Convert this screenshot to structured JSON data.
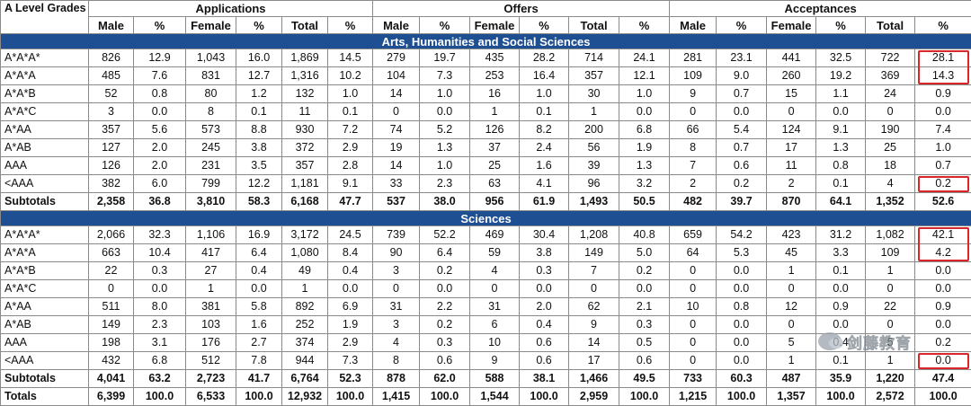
{
  "headers": {
    "grades": "A Level Grades",
    "groups": [
      "Applications",
      "Offers",
      "Acceptances"
    ],
    "columns": [
      "Male",
      "%",
      "Female",
      "%",
      "Total",
      "%"
    ]
  },
  "sections": [
    {
      "title": "Arts, Humanities and Social Sciences",
      "rows": [
        {
          "grade": "A*A*A*",
          "cells": [
            "826",
            "12.9",
            "1,043",
            "16.0",
            "1,869",
            "14.5",
            "279",
            "19.7",
            "435",
            "28.2",
            "714",
            "24.1",
            "281",
            "23.1",
            "441",
            "32.5",
            "722",
            "28.1"
          ]
        },
        {
          "grade": "A*A*A",
          "cells": [
            "485",
            "7.6",
            "831",
            "12.7",
            "1,316",
            "10.2",
            "104",
            "7.3",
            "253",
            "16.4",
            "357",
            "12.1",
            "109",
            "9.0",
            "260",
            "19.2",
            "369",
            "14.3"
          ]
        },
        {
          "grade": "A*A*B",
          "cells": [
            "52",
            "0.8",
            "80",
            "1.2",
            "132",
            "1.0",
            "14",
            "1.0",
            "16",
            "1.0",
            "30",
            "1.0",
            "9",
            "0.7",
            "15",
            "1.1",
            "24",
            "0.9"
          ]
        },
        {
          "grade": "A*A*C",
          "cells": [
            "3",
            "0.0",
            "8",
            "0.1",
            "11",
            "0.1",
            "0",
            "0.0",
            "1",
            "0.1",
            "1",
            "0.0",
            "0",
            "0.0",
            "0",
            "0.0",
            "0",
            "0.0"
          ]
        },
        {
          "grade": "A*AA",
          "cells": [
            "357",
            "5.6",
            "573",
            "8.8",
            "930",
            "7.2",
            "74",
            "5.2",
            "126",
            "8.2",
            "200",
            "6.8",
            "66",
            "5.4",
            "124",
            "9.1",
            "190",
            "7.4"
          ]
        },
        {
          "grade": "A*AB",
          "cells": [
            "127",
            "2.0",
            "245",
            "3.8",
            "372",
            "2.9",
            "19",
            "1.3",
            "37",
            "2.4",
            "56",
            "1.9",
            "8",
            "0.7",
            "17",
            "1.3",
            "25",
            "1.0"
          ]
        },
        {
          "grade": "AAA",
          "cells": [
            "126",
            "2.0",
            "231",
            "3.5",
            "357",
            "2.8",
            "14",
            "1.0",
            "25",
            "1.6",
            "39",
            "1.3",
            "7",
            "0.6",
            "11",
            "0.8",
            "18",
            "0.7"
          ]
        },
        {
          "grade": "<AAA",
          "cells": [
            "382",
            "6.0",
            "799",
            "12.2",
            "1,181",
            "9.1",
            "33",
            "2.3",
            "63",
            "4.1",
            "96",
            "3.2",
            "2",
            "0.2",
            "2",
            "0.1",
            "4",
            "0.2"
          ]
        }
      ],
      "subtotal": {
        "label": "Subtotals",
        "cells": [
          "2,358",
          "36.8",
          "3,810",
          "58.3",
          "6,168",
          "47.7",
          "537",
          "38.0",
          "956",
          "61.9",
          "1,493",
          "50.5",
          "482",
          "39.7",
          "870",
          "64.1",
          "1,352",
          "52.6"
        ]
      }
    },
    {
      "title": "Sciences",
      "rows": [
        {
          "grade": "A*A*A*",
          "cells": [
            "2,066",
            "32.3",
            "1,106",
            "16.9",
            "3,172",
            "24.5",
            "739",
            "52.2",
            "469",
            "30.4",
            "1,208",
            "40.8",
            "659",
            "54.2",
            "423",
            "31.2",
            "1,082",
            "42.1"
          ]
        },
        {
          "grade": "A*A*A",
          "cells": [
            "663",
            "10.4",
            "417",
            "6.4",
            "1,080",
            "8.4",
            "90",
            "6.4",
            "59",
            "3.8",
            "149",
            "5.0",
            "64",
            "5.3",
            "45",
            "3.3",
            "109",
            "4.2"
          ]
        },
        {
          "grade": "A*A*B",
          "cells": [
            "22",
            "0.3",
            "27",
            "0.4",
            "49",
            "0.4",
            "3",
            "0.2",
            "4",
            "0.3",
            "7",
            "0.2",
            "0",
            "0.0",
            "1",
            "0.1",
            "1",
            "0.0"
          ]
        },
        {
          "grade": "A*A*C",
          "cells": [
            "0",
            "0.0",
            "1",
            "0.0",
            "1",
            "0.0",
            "0",
            "0.0",
            "0",
            "0.0",
            "0",
            "0.0",
            "0",
            "0.0",
            "0",
            "0.0",
            "0",
            "0.0"
          ]
        },
        {
          "grade": "A*AA",
          "cells": [
            "511",
            "8.0",
            "381",
            "5.8",
            "892",
            "6.9",
            "31",
            "2.2",
            "31",
            "2.0",
            "62",
            "2.1",
            "10",
            "0.8",
            "12",
            "0.9",
            "22",
            "0.9"
          ]
        },
        {
          "grade": "A*AB",
          "cells": [
            "149",
            "2.3",
            "103",
            "1.6",
            "252",
            "1.9",
            "3",
            "0.2",
            "6",
            "0.4",
            "9",
            "0.3",
            "0",
            "0.0",
            "0",
            "0.0",
            "0",
            "0.0"
          ]
        },
        {
          "grade": "AAA",
          "cells": [
            "198",
            "3.1",
            "176",
            "2.7",
            "374",
            "2.9",
            "4",
            "0.3",
            "10",
            "0.6",
            "14",
            "0.5",
            "0",
            "0.0",
            "5",
            "0.4",
            "5",
            "0.2"
          ]
        },
        {
          "grade": "<AAA",
          "cells": [
            "432",
            "6.8",
            "512",
            "7.8",
            "944",
            "7.3",
            "8",
            "0.6",
            "9",
            "0.6",
            "17",
            "0.6",
            "0",
            "0.0",
            "1",
            "0.1",
            "1",
            "0.0"
          ]
        }
      ],
      "subtotal": {
        "label": "Subtotals",
        "cells": [
          "4,041",
          "63.2",
          "2,723",
          "41.7",
          "6,764",
          "52.3",
          "878",
          "62.0",
          "588",
          "38.1",
          "1,466",
          "49.5",
          "733",
          "60.3",
          "487",
          "35.9",
          "1,220",
          "47.4"
        ]
      }
    }
  ],
  "totals": {
    "label": "Totals",
    "cells": [
      "6,399",
      "100.0",
      "6,533",
      "100.0",
      "12,932",
      "100.0",
      "1,415",
      "100.0",
      "1,544",
      "100.0",
      "2,959",
      "100.0",
      "1,215",
      "100.0",
      "1,357",
      "100.0",
      "2,572",
      "100.0"
    ]
  },
  "watermark": {
    "text": "剑藤教育",
    "icon": "wechat-logo-icon"
  },
  "highlight_color": "#d9262b",
  "section_color": "#1f4f93"
}
